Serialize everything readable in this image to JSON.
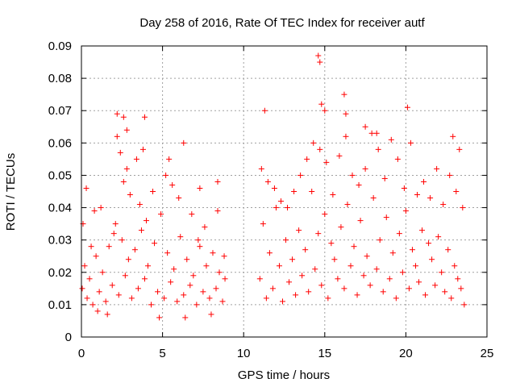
{
  "chart_data": {
    "type": "scatter",
    "title": "Day 258 of 2016, Rate Of TEC Index for receiver autf",
    "xlabel": "GPS time / hours",
    "ylabel": "ROTI / TECUs",
    "xlim": [
      0,
      25
    ],
    "ylim": [
      0,
      0.09
    ],
    "xticks": [
      0,
      5,
      10,
      15,
      20,
      25
    ],
    "xtick_labels": [
      "0",
      "5",
      "10",
      "15",
      "20",
      "25"
    ],
    "yticks": [
      0,
      0.01,
      0.02,
      0.03,
      0.04,
      0.05,
      0.06,
      0.07,
      0.08,
      0.09
    ],
    "ytick_labels": [
      "0",
      "0.01",
      "0.02",
      "0.03",
      "0.04",
      "0.05",
      "0.06",
      "0.07",
      "0.08",
      "0.09"
    ],
    "grid": true,
    "marker": "+",
    "marker_color": "#ff0000",
    "data_gap_hours": [
      8.95,
      10.95
    ],
    "series": [
      {
        "name": "ROTI",
        "x": [
          0.05,
          0.2,
          0.35,
          0.5,
          0.7,
          0.9,
          1.1,
          1.3,
          1.5,
          1.7,
          1.9,
          2.1,
          2.3,
          2.5,
          2.7,
          2.9,
          3.1,
          3.3,
          3.5,
          3.7,
          3.9,
          4.1,
          4.3,
          4.5,
          4.7,
          4.9,
          5.1,
          5.3,
          5.5,
          5.7,
          5.9,
          6.1,
          6.3,
          6.5,
          6.7,
          6.9,
          7.1,
          7.3,
          7.5,
          7.7,
          7.9,
          8.1,
          8.3,
          8.5,
          8.7,
          8.85,
          0.1,
          0.3,
          0.6,
          0.8,
          1.0,
          1.2,
          1.6,
          2.0,
          2.2,
          2.4,
          2.6,
          2.8,
          3.0,
          3.4,
          3.6,
          3.8,
          4.0,
          4.4,
          4.8,
          5.2,
          5.6,
          6.0,
          6.4,
          6.8,
          7.2,
          7.6,
          8.0,
          8.4,
          8.8,
          2.2,
          2.6,
          2.8,
          3.9,
          5.4,
          6.3,
          7.3,
          8.4,
          11.0,
          11.2,
          11.4,
          11.6,
          11.8,
          12.0,
          12.2,
          12.4,
          12.6,
          12.8,
          13.0,
          13.2,
          13.4,
          13.6,
          13.8,
          14.0,
          14.2,
          14.4,
          14.6,
          14.8,
          15.0,
          15.2,
          15.4,
          15.6,
          15.8,
          16.0,
          16.2,
          16.4,
          16.6,
          16.8,
          17.0,
          17.2,
          17.4,
          17.6,
          17.8,
          18.0,
          18.2,
          18.4,
          18.6,
          18.8,
          19.0,
          19.2,
          19.4,
          19.6,
          19.8,
          20.0,
          20.2,
          20.4,
          20.6,
          20.8,
          21.0,
          21.2,
          21.4,
          21.6,
          21.8,
          22.0,
          22.2,
          22.4,
          22.6,
          22.8,
          23.0,
          23.2,
          23.4,
          23.6,
          11.1,
          11.5,
          11.9,
          12.3,
          12.7,
          13.1,
          13.5,
          13.9,
          14.3,
          14.7,
          15.1,
          15.5,
          15.9,
          16.3,
          16.7,
          17.1,
          17.5,
          17.9,
          18.3,
          18.7,
          19.1,
          19.5,
          19.9,
          20.3,
          20.7,
          21.1,
          21.5,
          21.9,
          22.3,
          22.7,
          23.1,
          23.5,
          11.3,
          14.6,
          14.7,
          14.8,
          15.0,
          16.2,
          16.3,
          17.5,
          18.2,
          20.1,
          22.9,
          23.3
        ],
        "y": [
          0.015,
          0.022,
          0.012,
          0.018,
          0.01,
          0.025,
          0.014,
          0.02,
          0.011,
          0.028,
          0.016,
          0.035,
          0.013,
          0.03,
          0.019,
          0.024,
          0.012,
          0.027,
          0.015,
          0.033,
          0.018,
          0.022,
          0.01,
          0.029,
          0.014,
          0.038,
          0.012,
          0.026,
          0.017,
          0.021,
          0.011,
          0.031,
          0.013,
          0.024,
          0.016,
          0.019,
          0.01,
          0.028,
          0.014,
          0.022,
          0.012,
          0.026,
          0.015,
          0.02,
          0.011,
          0.018,
          0.035,
          0.046,
          0.028,
          0.039,
          0.008,
          0.04,
          0.007,
          0.032,
          0.062,
          0.057,
          0.048,
          0.052,
          0.044,
          0.055,
          0.041,
          0.058,
          0.036,
          0.045,
          0.006,
          0.05,
          0.047,
          0.043,
          0.006,
          0.038,
          0.03,
          0.034,
          0.007,
          0.039,
          0.025,
          0.069,
          0.068,
          0.064,
          0.068,
          0.055,
          0.06,
          0.046,
          0.048,
          0.018,
          0.035,
          0.012,
          0.026,
          0.015,
          0.04,
          0.022,
          0.011,
          0.03,
          0.017,
          0.024,
          0.013,
          0.033,
          0.019,
          0.027,
          0.014,
          0.045,
          0.021,
          0.032,
          0.016,
          0.038,
          0.012,
          0.029,
          0.024,
          0.018,
          0.034,
          0.015,
          0.041,
          0.022,
          0.028,
          0.013,
          0.036,
          0.019,
          0.025,
          0.016,
          0.043,
          0.021,
          0.03,
          0.014,
          0.037,
          0.018,
          0.026,
          0.012,
          0.032,
          0.02,
          0.039,
          0.015,
          0.027,
          0.022,
          0.017,
          0.033,
          0.013,
          0.029,
          0.024,
          0.016,
          0.031,
          0.02,
          0.014,
          0.027,
          0.012,
          0.022,
          0.018,
          0.015,
          0.01,
          0.052,
          0.048,
          0.046,
          0.042,
          0.04,
          0.045,
          0.05,
          0.055,
          0.06,
          0.058,
          0.054,
          0.044,
          0.056,
          0.062,
          0.05,
          0.047,
          0.052,
          0.063,
          0.058,
          0.049,
          0.061,
          0.055,
          0.046,
          0.06,
          0.044,
          0.048,
          0.043,
          0.052,
          0.041,
          0.05,
          0.045,
          0.04,
          0.07,
          0.087,
          0.085,
          0.072,
          0.07,
          0.075,
          0.069,
          0.065,
          0.063,
          0.071,
          0.062,
          0.058
        ]
      }
    ]
  }
}
